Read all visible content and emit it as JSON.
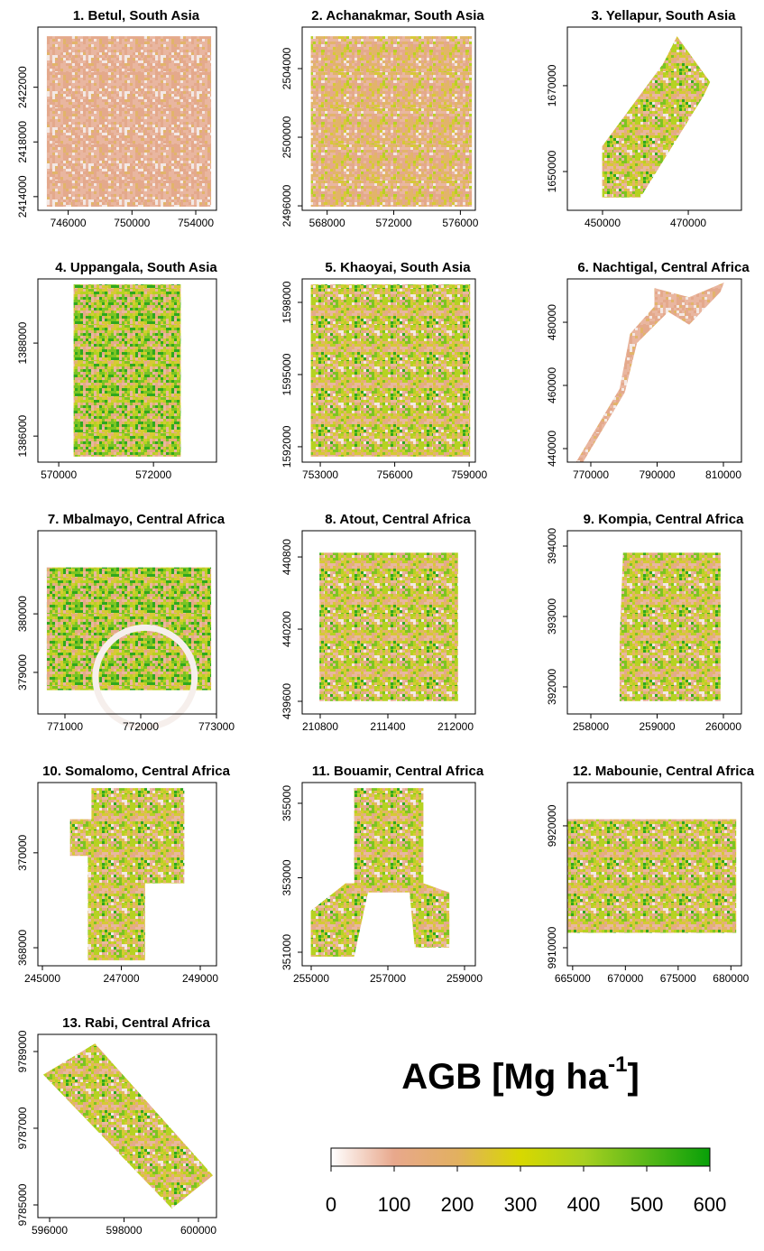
{
  "chart_data": [
    {
      "type": "raster",
      "title": "1. Betul, South Asia",
      "xlim": [
        744100,
        755300
      ],
      "ylim": [
        2413000,
        2426400
      ],
      "xticks": [
        746000,
        750000,
        754000
      ],
      "yticks": [
        2414000,
        2418000,
        2422000
      ]
    },
    {
      "type": "raster",
      "title": "2. Achanakmar, South Asia",
      "xlim": [
        566500,
        576900
      ],
      "ylim": [
        2495740,
        2506420
      ],
      "xticks": [
        568000,
        572000,
        576000
      ],
      "yticks": [
        2496000,
        2500000,
        2504000
      ]
    },
    {
      "type": "raster",
      "title": "3. Yellapur, South Asia",
      "xlim": [
        441800,
        482400
      ],
      "ylim": [
        1640970,
        1683650
      ],
      "xticks": [
        450000,
        470000
      ],
      "yticks": [
        1650000,
        1670000
      ]
    },
    {
      "type": "raster",
      "title": "4. Uppangala, South Asia",
      "xlim": [
        569560,
        573330
      ],
      "ylim": [
        1385440,
        1389380
      ],
      "xticks": [
        570000,
        572000
      ],
      "yticks": [
        1386000,
        1388000
      ]
    },
    {
      "type": "raster",
      "title": "5. Khaoyai, South Asia",
      "xlim": [
        752270,
        759250
      ],
      "ylim": [
        1591360,
        1598975
      ],
      "xticks": [
        753000,
        756000,
        759000
      ],
      "yticks": [
        1592000,
        1595000,
        1598000
      ]
    },
    {
      "type": "raster",
      "title": "6. Nachtigal, Central Africa",
      "xlim": [
        762930,
        815440
      ],
      "ylim": [
        435710,
        493730
      ],
      "xticks": [
        770000,
        790000,
        810000
      ],
      "yticks": [
        440000,
        460000,
        480000
      ]
    },
    {
      "type": "raster",
      "title": "7. Mbalmayo, Central Africa",
      "xlim": [
        770643,
        773000
      ],
      "ylim": [
        378290,
        381420
      ],
      "xticks": [
        771000,
        772000,
        773000
      ],
      "yticks": [
        379000,
        380000
      ]
    },
    {
      "type": "raster",
      "title": "8. Atout, Central Africa",
      "xlim": [
        210640,
        212176
      ],
      "ylim": [
        439495,
        441018
      ],
      "xticks": [
        210800,
        211400,
        212000
      ],
      "yticks": [
        439600,
        440200,
        440800
      ]
    },
    {
      "type": "raster",
      "title": "9. Kompia, Central Africa",
      "xlim": [
        257646,
        260272
      ],
      "ylim": [
        391615,
        394218
      ],
      "xticks": [
        258000,
        259000,
        260000
      ],
      "yticks": [
        392000,
        393000,
        394000
      ]
    },
    {
      "type": "raster",
      "title": "10. Somalomo, Central Africa",
      "xlim": [
        244886,
        249411
      ],
      "ylim": [
        367620,
        371480
      ],
      "xticks": [
        245000,
        247000,
        249000
      ],
      "yticks": [
        368000,
        370000
      ]
    },
    {
      "type": "raster",
      "title": "11. Bouamir, Central Africa",
      "xlim": [
        254765,
        259282
      ],
      "ylim": [
        350636,
        355557
      ],
      "xticks": [
        255000,
        257000,
        259000
      ],
      "yticks": [
        351000,
        353000,
        355000
      ]
    },
    {
      "type": "raster",
      "title": "12. Mabounie, Central Africa",
      "xlim": [
        664500,
        681000
      ],
      "ylim": [
        9908520,
        9923550
      ],
      "xticks": [
        665000,
        670000,
        675000,
        680000
      ],
      "yticks": [
        9910000,
        9920000
      ]
    },
    {
      "type": "raster",
      "title": "13. Rabi, Central Africa",
      "xlim": [
        595685,
        600485
      ],
      "ylim": [
        9784670,
        9789447
      ],
      "xticks": [
        596000,
        598000,
        600000
      ],
      "yticks": [
        9785000,
        9787000,
        9789000
      ]
    }
  ],
  "colorbar": {
    "title": "AGB [Mg ha",
    "title_sup": "-1",
    "title_end": "]",
    "lim": [
      0,
      600
    ],
    "ticks": [
      0,
      100,
      200,
      300,
      400,
      500,
      600
    ],
    "colors": [
      "#ffffff",
      "#e8a88c",
      "#e2b060",
      "#d8d800",
      "#a8d020",
      "#58b818",
      "#08a008"
    ]
  }
}
